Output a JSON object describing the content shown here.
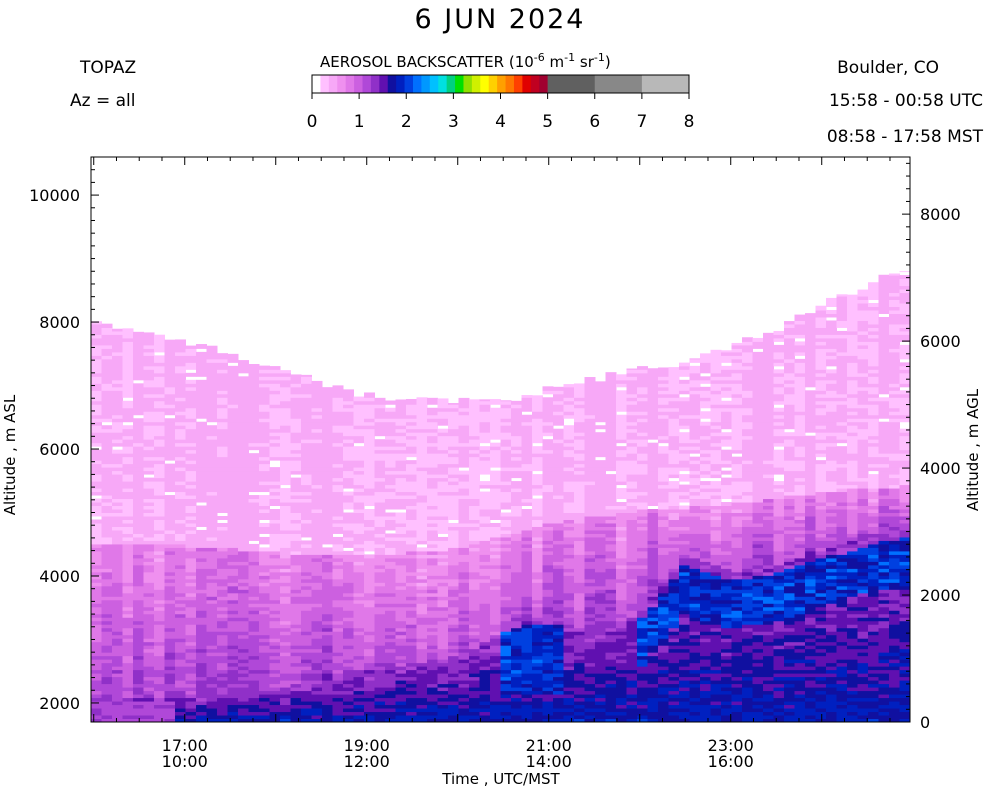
{
  "header": {
    "title": "6 JUN 2024",
    "instrument": "TOPAZ",
    "azimuth": "Az = all",
    "location": "Boulder, CO",
    "utc_range": "15:58 - 00:58 UTC",
    "mst_range": "08:58 - 17:58 MST"
  },
  "colorbar": {
    "label_text": "AEROSOL BACKSCATTER (10",
    "label_exp1": "-6",
    "label_unit1": " m",
    "label_exp2": "-1",
    "label_unit2": " sr",
    "label_exp3": "-1",
    "label_close": ")",
    "ticks": [
      "0",
      "1",
      "2",
      "3",
      "4",
      "5",
      "6",
      "7",
      "8"
    ],
    "colors": [
      "#ffffff",
      "#ffc0ff",
      "#f7a8f7",
      "#ef90ef",
      "#e078e8",
      "#cc60e0",
      "#b048d8",
      "#9030c8",
      "#6010b0",
      "#1010a0",
      "#0020c0",
      "#0040e0",
      "#0070ff",
      "#0098ff",
      "#00c0ff",
      "#00e0e0",
      "#00d080",
      "#00e000",
      "#90e000",
      "#d0f000",
      "#ffff00",
      "#ffd000",
      "#ffa000",
      "#ff7800",
      "#ff4000",
      "#e00000",
      "#c00020",
      "#a00030",
      "#606060",
      "#888888",
      "#b8b8b8"
    ]
  },
  "chart_data": {
    "type": "heatmap",
    "title": "6 JUN 2024",
    "xlabel": "Time , UTC/MST",
    "ylabel_left": "Altitude , m ASL",
    "ylabel_right": "Altitude , m AGL",
    "x_unit": "UTC hour",
    "xlim": [
      15.97,
      24.97
    ],
    "ylim_asl": [
      1700,
      10600
    ],
    "ylim_agl": [
      0,
      8900
    ],
    "x_ticks": [
      {
        "utc": "17:00",
        "mst": "10:00",
        "x": 17
      },
      {
        "utc": "19:00",
        "mst": "12:00",
        "x": 19
      },
      {
        "utc": "21:00",
        "mst": "14:00",
        "x": 21
      },
      {
        "utc": "23:00",
        "mst": "16:00",
        "x": 23
      }
    ],
    "y_ticks_asl": [
      2000,
      4000,
      6000,
      8000,
      10000
    ],
    "y_ticks_agl": [
      0,
      2000,
      4000,
      6000,
      8000
    ],
    "value_unit": "10^-6 m^-1 sr^-1",
    "color_range": [
      0,
      8
    ],
    "signal_top_asl": [
      {
        "t": 16.0,
        "alt": 8000
      },
      {
        "t": 16.5,
        "alt": 7900
      },
      {
        "t": 17.0,
        "alt": 7700
      },
      {
        "t": 17.5,
        "alt": 7500
      },
      {
        "t": 18.0,
        "alt": 7250
      },
      {
        "t": 18.5,
        "alt": 7050
      },
      {
        "t": 19.0,
        "alt": 6850
      },
      {
        "t": 19.5,
        "alt": 6780
      },
      {
        "t": 20.0,
        "alt": 6750
      },
      {
        "t": 20.5,
        "alt": 6730
      },
      {
        "t": 21.0,
        "alt": 6950
      },
      {
        "t": 21.5,
        "alt": 7100
      },
      {
        "t": 22.0,
        "alt": 7250
      },
      {
        "t": 22.5,
        "alt": 7350
      },
      {
        "t": 23.0,
        "alt": 7600
      },
      {
        "t": 23.5,
        "alt": 7900
      },
      {
        "t": 24.0,
        "alt": 8250
      },
      {
        "t": 24.5,
        "alt": 8600
      },
      {
        "t": 24.95,
        "alt": 8850
      }
    ],
    "layer_top_asl": [
      {
        "t": 16.0,
        "alt": 4500
      },
      {
        "t": 17.0,
        "alt": 4450
      },
      {
        "t": 18.0,
        "alt": 4350
      },
      {
        "t": 19.0,
        "alt": 4300
      },
      {
        "t": 20.0,
        "alt": 4400
      },
      {
        "t": 21.0,
        "alt": 4800
      },
      {
        "t": 22.0,
        "alt": 5000
      },
      {
        "t": 23.0,
        "alt": 5100
      },
      {
        "t": 24.0,
        "alt": 5300
      },
      {
        "t": 24.95,
        "alt": 5400
      }
    ],
    "dark_layer_top_asl": [
      {
        "t": 16.0,
        "alt": 2100
      },
      {
        "t": 17.0,
        "alt": 2050
      },
      {
        "t": 18.0,
        "alt": 2200
      },
      {
        "t": 19.0,
        "alt": 2500
      },
      {
        "t": 20.0,
        "alt": 2700
      },
      {
        "t": 20.8,
        "alt": 3300
      },
      {
        "t": 21.5,
        "alt": 3100
      },
      {
        "t": 22.0,
        "alt": 3400
      },
      {
        "t": 22.5,
        "alt": 4300
      },
      {
        "t": 23.0,
        "alt": 4050
      },
      {
        "t": 23.5,
        "alt": 4150
      },
      {
        "t": 24.0,
        "alt": 4400
      },
      {
        "t": 24.5,
        "alt": 4600
      },
      {
        "t": 24.95,
        "alt": 4750
      }
    ]
  }
}
